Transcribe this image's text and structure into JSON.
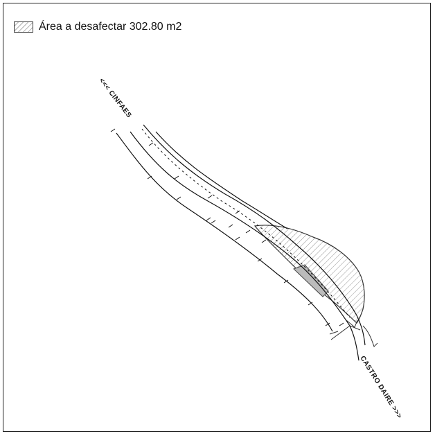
{
  "legend": {
    "label": "Área a desafectar 302.80 m2",
    "swatch_fill": "hatched",
    "swatch_color": "#555555"
  },
  "roads": {
    "northwest": "<<< CINFAES",
    "southeast": "CASTRO DAIRE >>>"
  },
  "colors": {
    "line": "#111111",
    "hatch": "#666666",
    "hatched_area_edge": "#333333",
    "grey_fill": "#bbbbbb"
  }
}
